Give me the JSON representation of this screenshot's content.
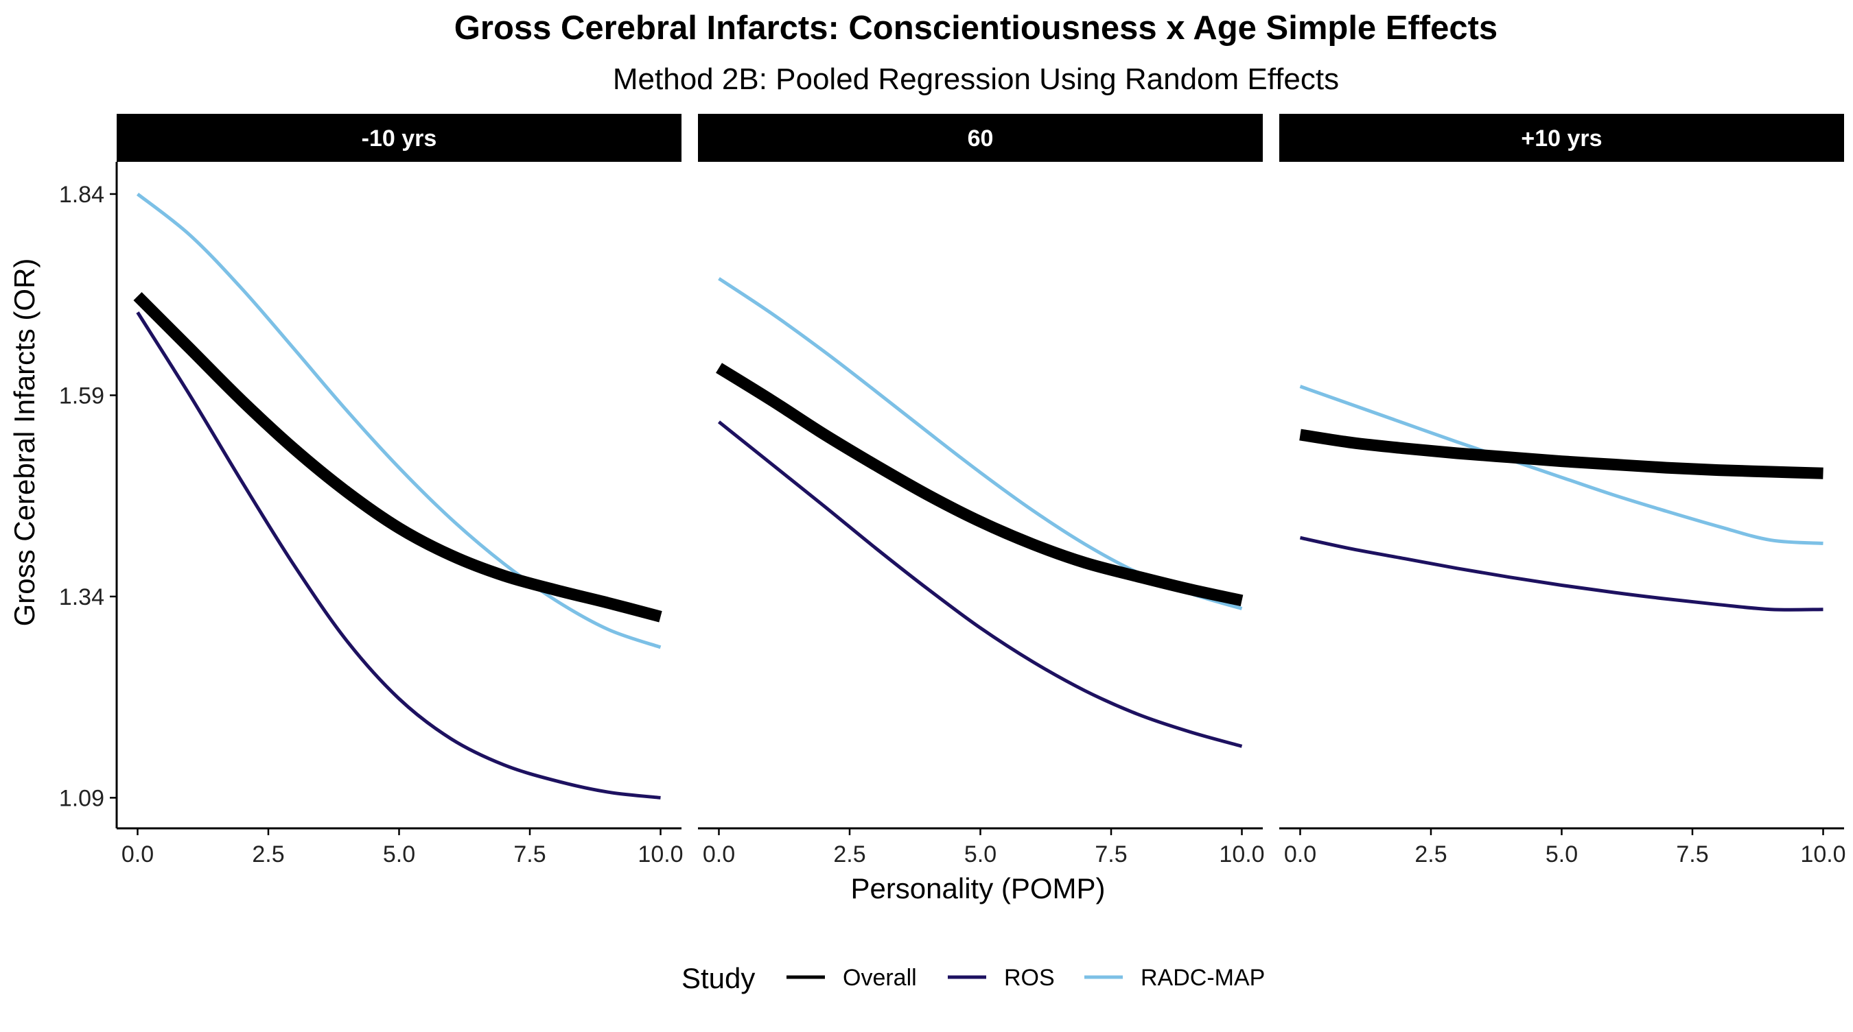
{
  "chart_data": {
    "type": "line",
    "title": "Gross Cerebral Infarcts: Conscientiousness x Age Simple Effects",
    "subtitle": "Method 2B: Pooled Regression Using Random Effects",
    "xlabel": "Personality (POMP)",
    "ylabel": "Gross Cerebral Infarcts (OR)",
    "xlim": [
      -0.4,
      10.4
    ],
    "ylim": [
      1.052,
      1.88
    ],
    "xticks": [
      0,
      2.5,
      5,
      7.5,
      10
    ],
    "xtick_labels": [
      "0.0",
      "2.5",
      "5.0",
      "7.5",
      "10.0"
    ],
    "yticks": [
      1.09,
      1.34,
      1.59,
      1.84
    ],
    "ytick_labels": [
      "1.09",
      "1.34",
      "1.59",
      "1.84"
    ],
    "grid": false,
    "legend": {
      "title": "Study",
      "placement": "bottom",
      "entries": [
        "Overall",
        "ROS",
        "RADC-MAP"
      ]
    },
    "series_styles": {
      "Overall": {
        "color": "#000000"
      },
      "ROS": {
        "color": "#1d1160"
      },
      "RADC-MAP": {
        "color": "#7cc0e6"
      }
    },
    "x": [
      0,
      1,
      2,
      3,
      4,
      5,
      6,
      7,
      8,
      9,
      10
    ],
    "facets": [
      {
        "label": "-10 yrs",
        "series": [
          {
            "name": "Overall",
            "values": [
              1.713,
              1.648,
              1.583,
              1.523,
              1.47,
              1.425,
              1.391,
              1.366,
              1.348,
              1.332,
              1.315
            ]
          },
          {
            "name": "ROS",
            "values": [
              1.693,
              1.59,
              1.482,
              1.378,
              1.285,
              1.213,
              1.163,
              1.131,
              1.111,
              1.097,
              1.09
            ]
          },
          {
            "name": "RADC-MAP",
            "values": [
              1.84,
              1.789,
              1.722,
              1.647,
              1.571,
              1.5,
              1.436,
              1.381,
              1.335,
              1.299,
              1.277
            ]
          }
        ]
      },
      {
        "label": "60",
        "series": [
          {
            "name": "Overall",
            "values": [
              1.624,
              1.584,
              1.542,
              1.503,
              1.466,
              1.433,
              1.405,
              1.382,
              1.365,
              1.349,
              1.335
            ]
          },
          {
            "name": "ROS",
            "values": [
              1.557,
              1.505,
              1.453,
              1.4,
              1.349,
              1.301,
              1.259,
              1.223,
              1.194,
              1.172,
              1.154
            ]
          },
          {
            "name": "RADC-MAP",
            "values": [
              1.735,
              1.692,
              1.645,
              1.595,
              1.544,
              1.494,
              1.447,
              1.405,
              1.37,
              1.344,
              1.325
            ]
          }
        ]
      },
      {
        "label": "+10 yrs",
        "series": [
          {
            "name": "Overall",
            "values": [
              1.541,
              1.531,
              1.524,
              1.518,
              1.513,
              1.508,
              1.504,
              1.5,
              1.497,
              1.495,
              1.493
            ]
          },
          {
            "name": "ROS",
            "values": [
              1.413,
              1.399,
              1.387,
              1.375,
              1.364,
              1.354,
              1.345,
              1.337,
              1.33,
              1.324,
              1.324
            ]
          },
          {
            "name": "RADC-MAP",
            "values": [
              1.601,
              1.578,
              1.555,
              1.532,
              1.51,
              1.488,
              1.466,
              1.446,
              1.427,
              1.41,
              1.406
            ]
          }
        ]
      }
    ]
  }
}
